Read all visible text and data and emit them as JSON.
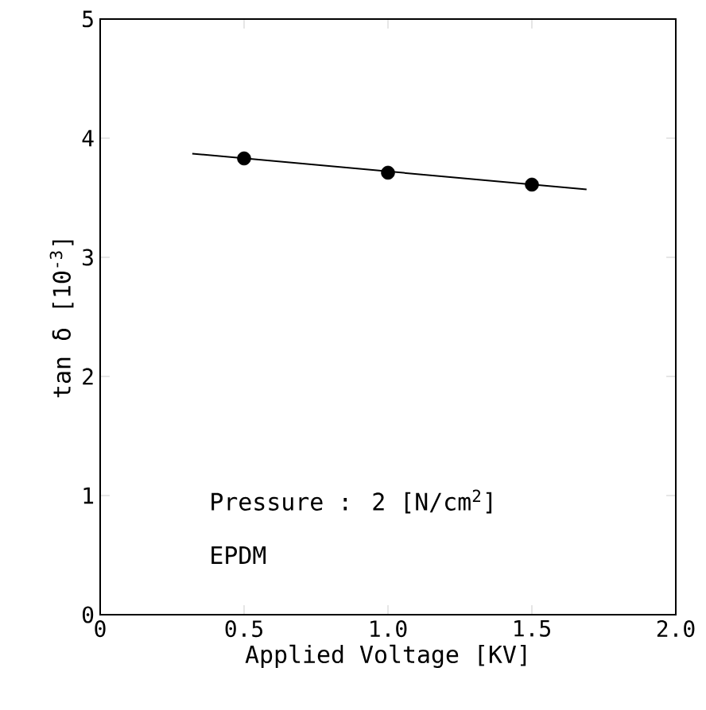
{
  "chart_data": {
    "type": "scatter",
    "xlabel": "Applied Voltage [KV]",
    "ylabel": "tan δ [10$^{-3}$]",
    "series": [
      {
        "color": "#000000",
        "x": [
          0.5,
          1.0,
          1.5
        ],
        "values": [
          3.83,
          3.71,
          3.61
        ],
        "marker": "circle"
      },
      {
        "type": "line",
        "color": "#000000",
        "x": [
          0.32,
          1.69
        ],
        "values": [
          3.87,
          3.57
        ],
        "marker": "none",
        "line_style": "solid"
      }
    ],
    "xlim": [
      0,
      2
    ],
    "ylim": [
      0,
      5
    ],
    "xticks": [
      0,
      0.5,
      {
        "value": 1,
        "label": "1.0"
      },
      1.5,
      {
        "value": 2,
        "label": "2.0"
      }
    ],
    "yticks": [
      0,
      1,
      2,
      3,
      4,
      5
    ],
    "grid": false,
    "annotations": [
      "Pressure : 2 [N/cm$^{2}$]",
      "EPDM"
    ]
  }
}
